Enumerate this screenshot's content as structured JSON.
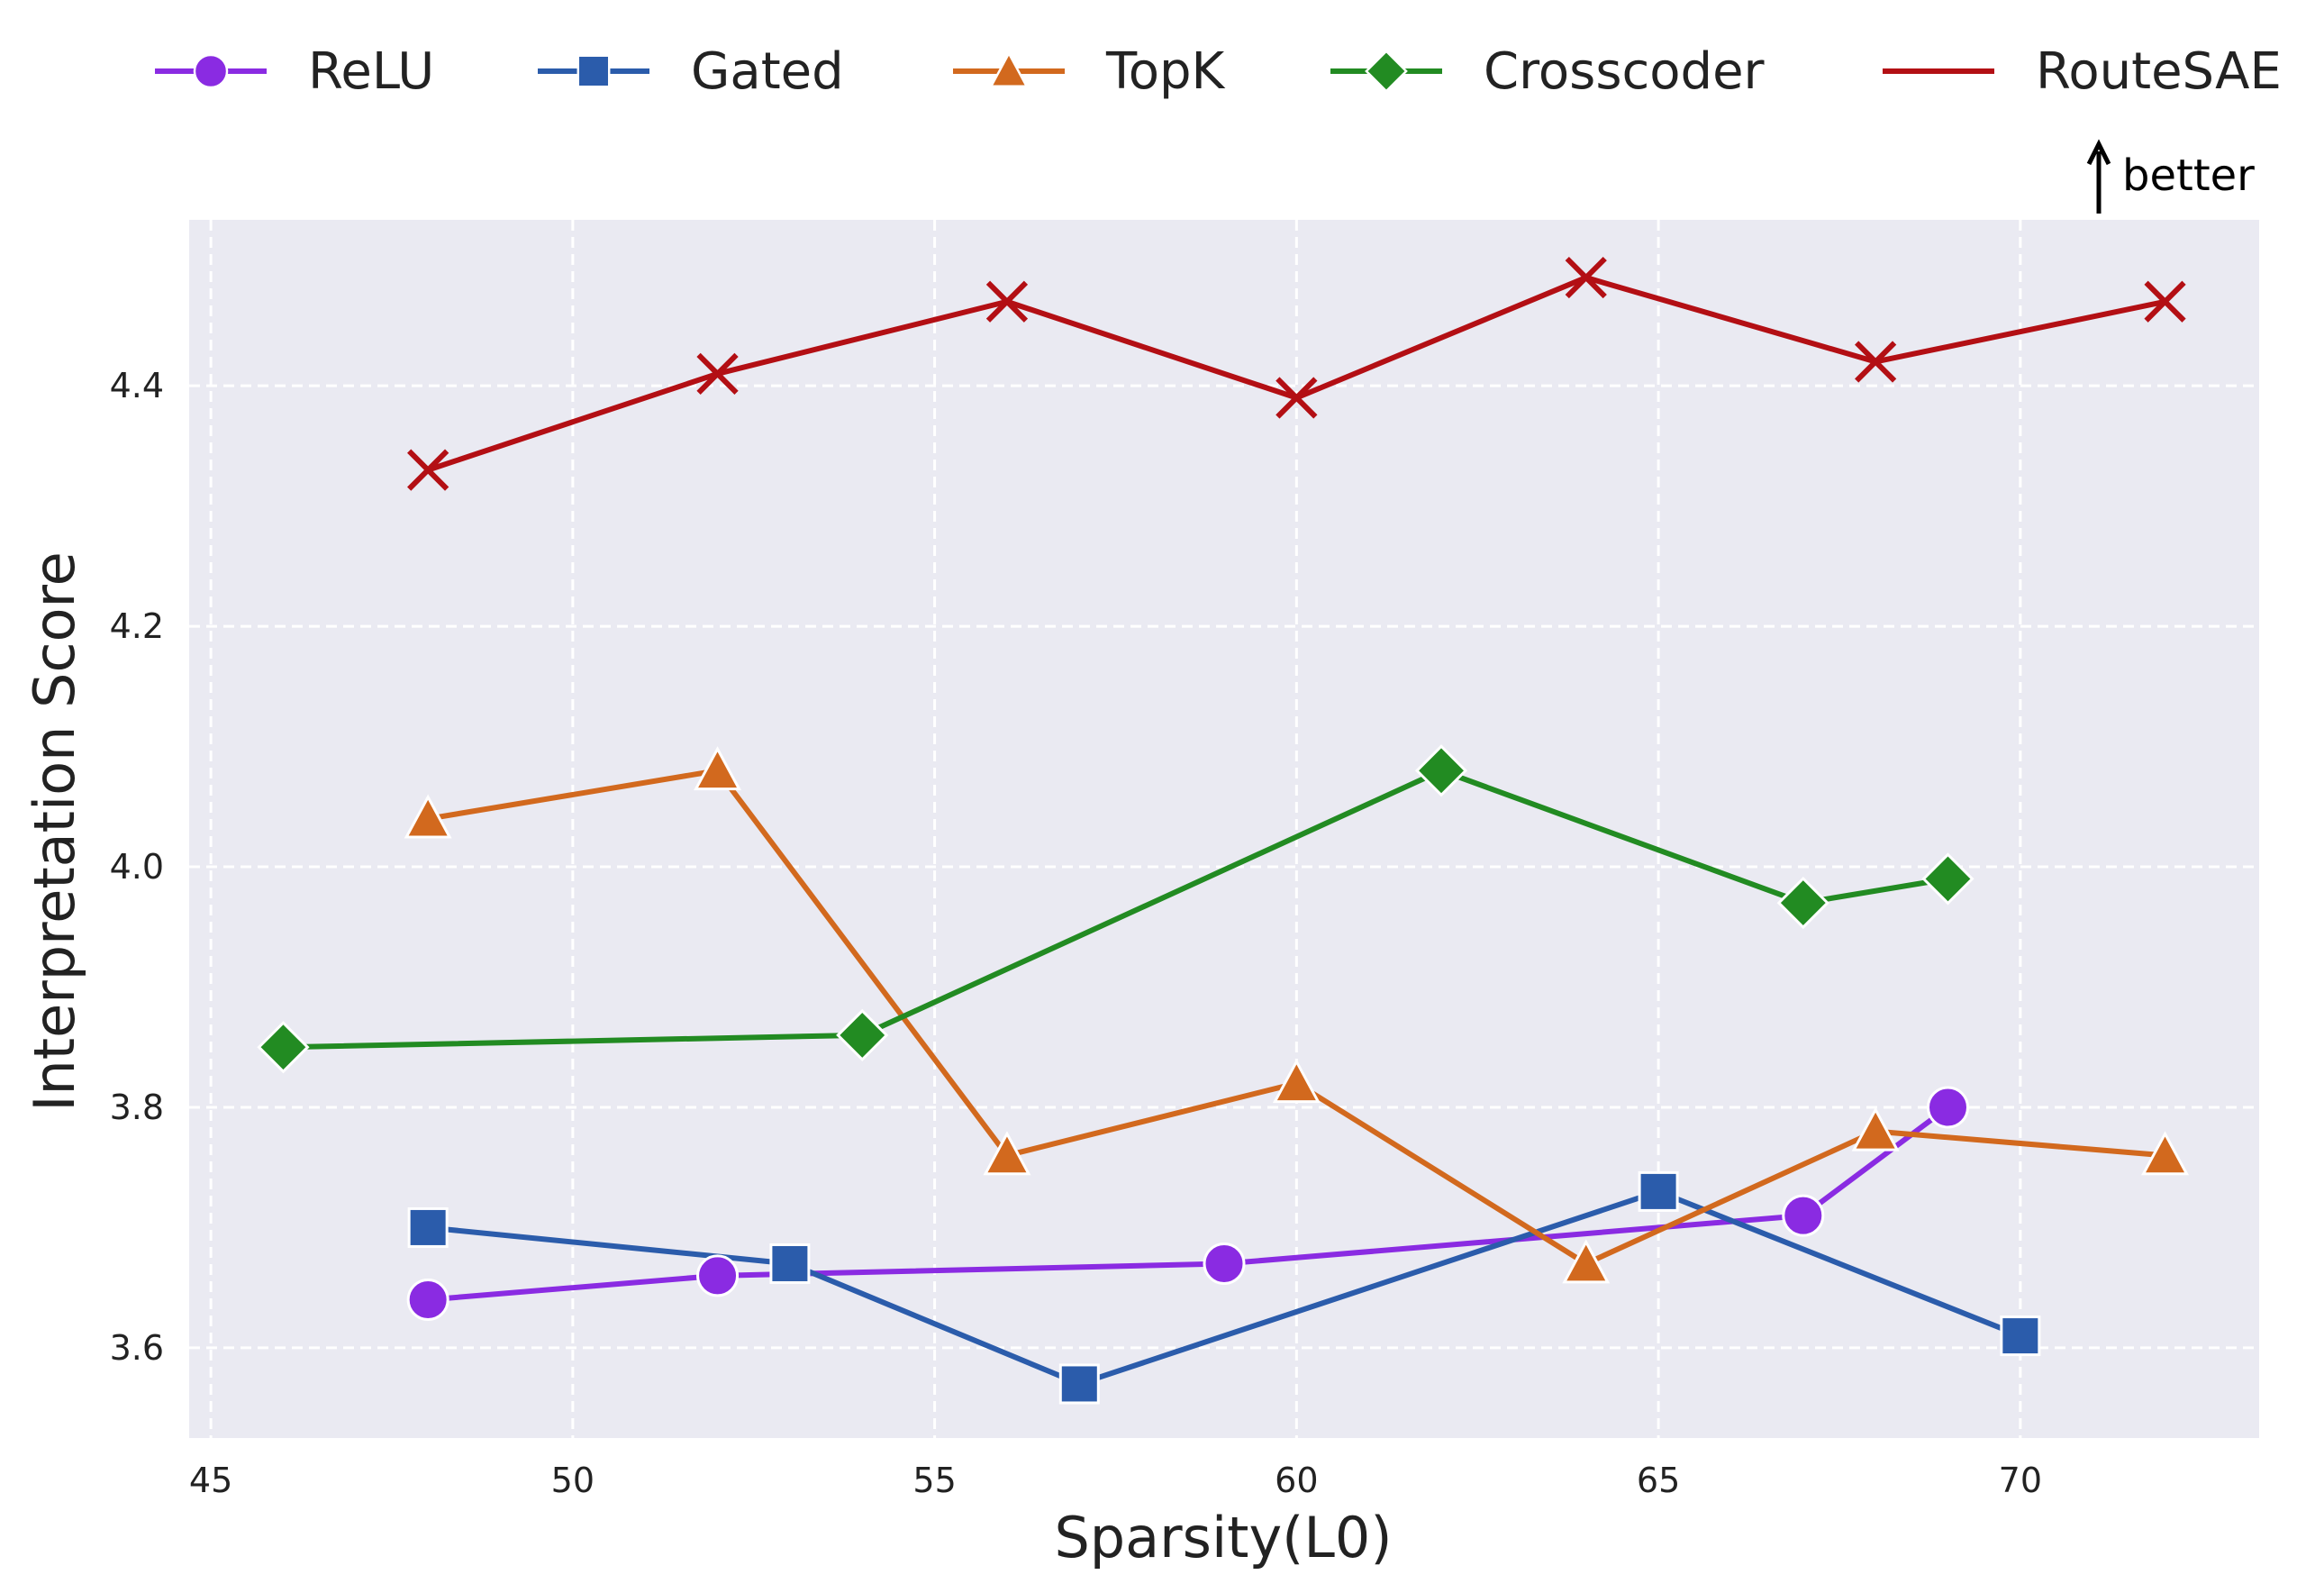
{
  "chart_data": {
    "type": "line",
    "title": "",
    "xlabel": "Sparsity(L0)",
    "ylabel": "Interpretation Score",
    "xlim": [
      44.7,
      73.3
    ],
    "ylim": [
      3.525,
      4.538
    ],
    "xticks": [
      45,
      50,
      55,
      60,
      65,
      70
    ],
    "yticks": [
      3.6,
      3.8,
      4.0,
      4.2,
      4.4
    ],
    "grid": true,
    "legend_position": "top",
    "annotation": {
      "text": "better",
      "arrow": "up",
      "position": "top-right"
    },
    "colors": {
      "background": "#eaeaf2",
      "grid": "#ffffff"
    },
    "series": [
      {
        "name": "ReLU",
        "color": "#8a2be2",
        "marker": "circle",
        "x": [
          48,
          52,
          59,
          67,
          69
        ],
        "y": [
          3.64,
          3.66,
          3.67,
          3.71,
          3.8
        ]
      },
      {
        "name": "Gated",
        "color": "#2b5cab",
        "marker": "square",
        "x": [
          48,
          53,
          57,
          65,
          70
        ],
        "y": [
          3.7,
          3.67,
          3.57,
          3.73,
          3.61
        ]
      },
      {
        "name": "TopK",
        "color": "#d2691e",
        "marker": "triangle",
        "x": [
          48,
          52,
          56,
          60,
          64,
          68,
          72
        ],
        "y": [
          4.04,
          4.08,
          3.76,
          3.82,
          3.67,
          3.78,
          3.76
        ]
      },
      {
        "name": "Crosscoder",
        "color": "#228b22",
        "marker": "diamond",
        "x": [
          46,
          54,
          62,
          67,
          69
        ],
        "y": [
          3.85,
          3.86,
          4.08,
          3.97,
          3.99
        ]
      },
      {
        "name": "RouteSAE",
        "color": "#b30f14",
        "marker": "x",
        "x": [
          48,
          52,
          56,
          60,
          64,
          68,
          72
        ],
        "y": [
          4.33,
          4.41,
          4.47,
          4.39,
          4.49,
          4.42,
          4.47
        ]
      }
    ]
  }
}
